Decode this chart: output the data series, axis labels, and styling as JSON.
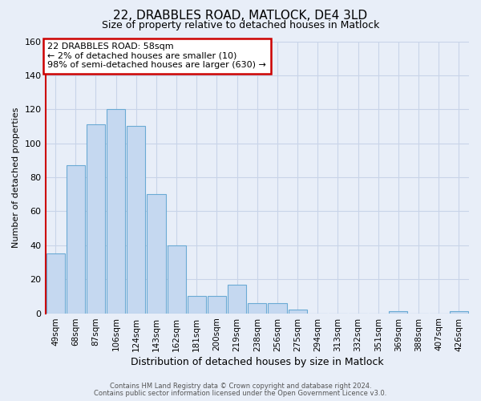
{
  "title": "22, DRABBLES ROAD, MATLOCK, DE4 3LD",
  "subtitle": "Size of property relative to detached houses in Matlock",
  "xlabel": "Distribution of detached houses by size in Matlock",
  "ylabel": "Number of detached properties",
  "footnote1": "Contains HM Land Registry data © Crown copyright and database right 2024.",
  "footnote2": "Contains public sector information licensed under the Open Government Licence v3.0.",
  "bar_labels": [
    "49sqm",
    "68sqm",
    "87sqm",
    "106sqm",
    "124sqm",
    "143sqm",
    "162sqm",
    "181sqm",
    "200sqm",
    "219sqm",
    "238sqm",
    "256sqm",
    "275sqm",
    "294sqm",
    "313sqm",
    "332sqm",
    "351sqm",
    "369sqm",
    "388sqm",
    "407sqm",
    "426sqm"
  ],
  "bar_values": [
    35,
    87,
    111,
    120,
    110,
    70,
    40,
    10,
    10,
    17,
    6,
    6,
    2,
    0,
    0,
    0,
    0,
    1,
    0,
    0,
    1
  ],
  "bar_color": "#c5d8f0",
  "bar_edge_color": "#6aaad4",
  "annotation_title": "22 DRABBLES ROAD: 58sqm",
  "annotation_line1": "← 2% of detached houses are smaller (10)",
  "annotation_line2": "98% of semi-detached houses are larger (630) →",
  "annotation_box_color": "#ffffff",
  "annotation_box_edge": "#cc0000",
  "red_line_color": "#cc0000",
  "ylim": [
    0,
    160
  ],
  "yticks": [
    0,
    20,
    40,
    60,
    80,
    100,
    120,
    140,
    160
  ],
  "bg_color": "#e8eef8",
  "plot_bg_color": "#e8eef8",
  "grid_color": "#c8d4e8",
  "title_fontsize": 11,
  "subtitle_fontsize": 9,
  "xlabel_fontsize": 9,
  "ylabel_fontsize": 8
}
